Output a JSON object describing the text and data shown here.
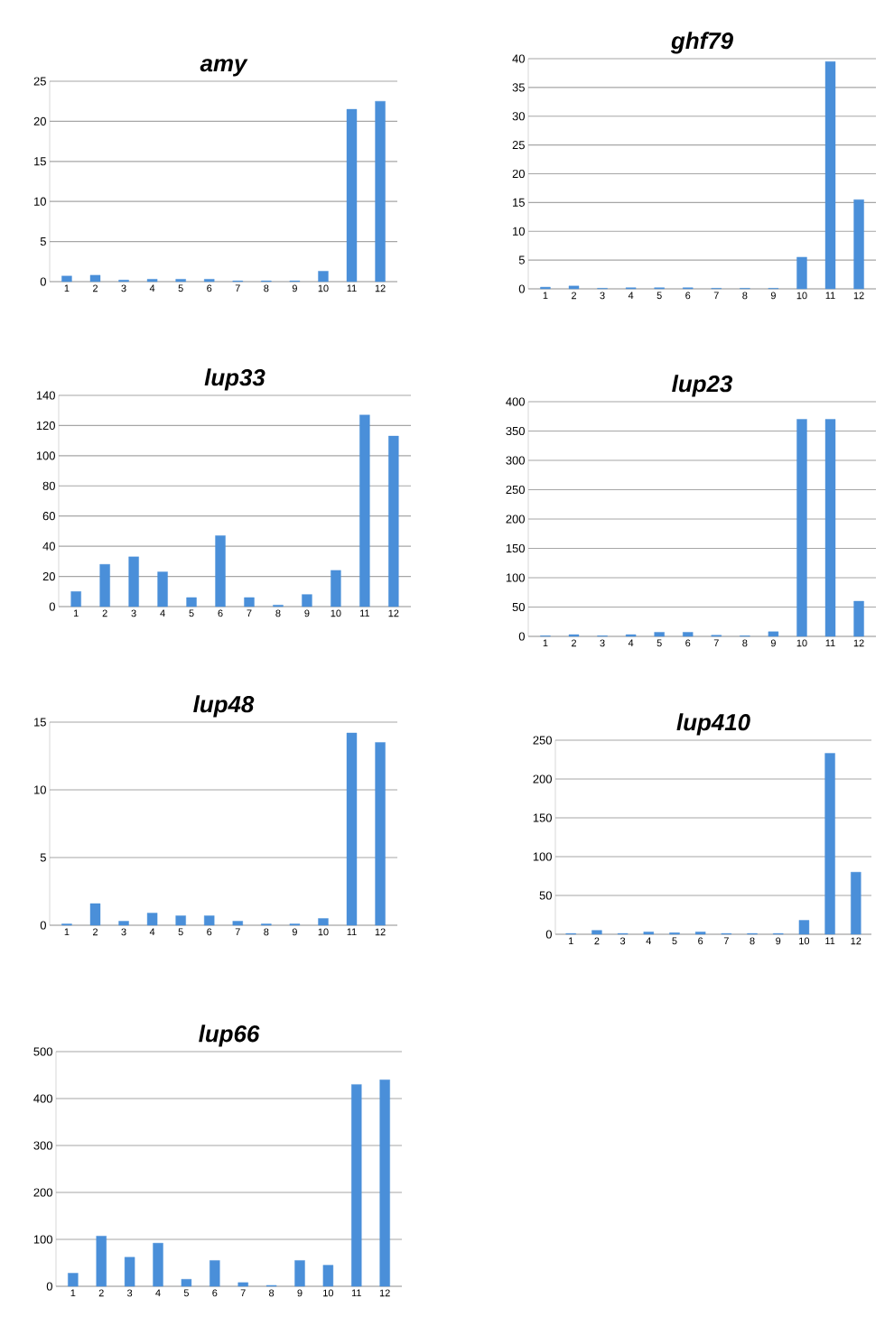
{
  "chart_data": [
    {
      "type": "bar",
      "title": "amy",
      "categories": [
        "1",
        "2",
        "3",
        "4",
        "5",
        "6",
        "7",
        "8",
        "9",
        "10",
        "11",
        "12"
      ],
      "values": [
        0.7,
        0.8,
        0.2,
        0.3,
        0.3,
        0.3,
        0.1,
        0.1,
        0.1,
        1.3,
        21.5,
        22.5
      ],
      "color": "#4a8fd9",
      "ylim": [
        0,
        25
      ],
      "yticks": [
        0,
        5,
        10,
        15,
        20,
        25
      ],
      "grid": "y"
    },
    {
      "type": "bar",
      "title": "ghf79",
      "categories": [
        "1",
        "2",
        "3",
        "4",
        "5",
        "6",
        "7",
        "8",
        "9",
        "10",
        "11",
        "12"
      ],
      "values": [
        0.3,
        0.5,
        0.1,
        0.2,
        0.2,
        0.2,
        0.1,
        0.1,
        0.1,
        5.5,
        39.5,
        15.5
      ],
      "color": "#4a8fd9",
      "ylim": [
        0,
        40
      ],
      "yticks": [
        0,
        5,
        10,
        15,
        20,
        25,
        30,
        35,
        40
      ],
      "grid": "y"
    },
    {
      "type": "bar",
      "title": "lup33",
      "categories": [
        "1",
        "2",
        "3",
        "4",
        "5",
        "6",
        "7",
        "8",
        "9",
        "10",
        "11",
        "12"
      ],
      "values": [
        10,
        28,
        33,
        23,
        6,
        47,
        6,
        1,
        8,
        24,
        127,
        113
      ],
      "color": "#4a8fd9",
      "ylim": [
        0,
        140
      ],
      "yticks": [
        0,
        20,
        40,
        60,
        80,
        100,
        120,
        140
      ],
      "grid": "y"
    },
    {
      "type": "bar",
      "title": "lup23",
      "categories": [
        "1",
        "2",
        "3",
        "4",
        "5",
        "6",
        "7",
        "8",
        "9",
        "10",
        "11",
        "12"
      ],
      "values": [
        1,
        3,
        1,
        3,
        7,
        7,
        2,
        1,
        8,
        370,
        370,
        60
      ],
      "color": "#4a8fd9",
      "ylim": [
        0,
        400
      ],
      "yticks": [
        0,
        50,
        100,
        150,
        200,
        250,
        300,
        350,
        400
      ],
      "grid": "y"
    },
    {
      "type": "bar",
      "title": "lup48",
      "categories": [
        "1",
        "2",
        "3",
        "4",
        "5",
        "6",
        "7",
        "8",
        "9",
        "10",
        "11",
        "12"
      ],
      "values": [
        0.1,
        1.6,
        0.3,
        0.9,
        0.7,
        0.7,
        0.3,
        0.1,
        0.1,
        0.5,
        14.2,
        13.5
      ],
      "color": "#4a8fd9",
      "ylim": [
        0,
        15
      ],
      "yticks": [
        0,
        5,
        10,
        15
      ],
      "grid": "y"
    },
    {
      "type": "bar",
      "title": "lup410",
      "categories": [
        "1",
        "2",
        "3",
        "4",
        "5",
        "6",
        "7",
        "8",
        "9",
        "10",
        "11",
        "12"
      ],
      "values": [
        1,
        5,
        1,
        3,
        2,
        3,
        1,
        1,
        1,
        18,
        233,
        80
      ],
      "color": "#4a8fd9",
      "ylim": [
        0,
        250
      ],
      "yticks": [
        0,
        50,
        100,
        150,
        200,
        250
      ],
      "grid": "y"
    },
    {
      "type": "bar",
      "title": "lup66",
      "categories": [
        "1",
        "2",
        "3",
        "4",
        "5",
        "6",
        "7",
        "8",
        "9",
        "10",
        "11",
        "12"
      ],
      "values": [
        28,
        107,
        62,
        92,
        15,
        55,
        8,
        2,
        55,
        45,
        430,
        440
      ],
      "color": "#4a8fd9",
      "ylim": [
        0,
        500
      ],
      "yticks": [
        0,
        100,
        200,
        300,
        400,
        500
      ],
      "grid": "y"
    }
  ]
}
